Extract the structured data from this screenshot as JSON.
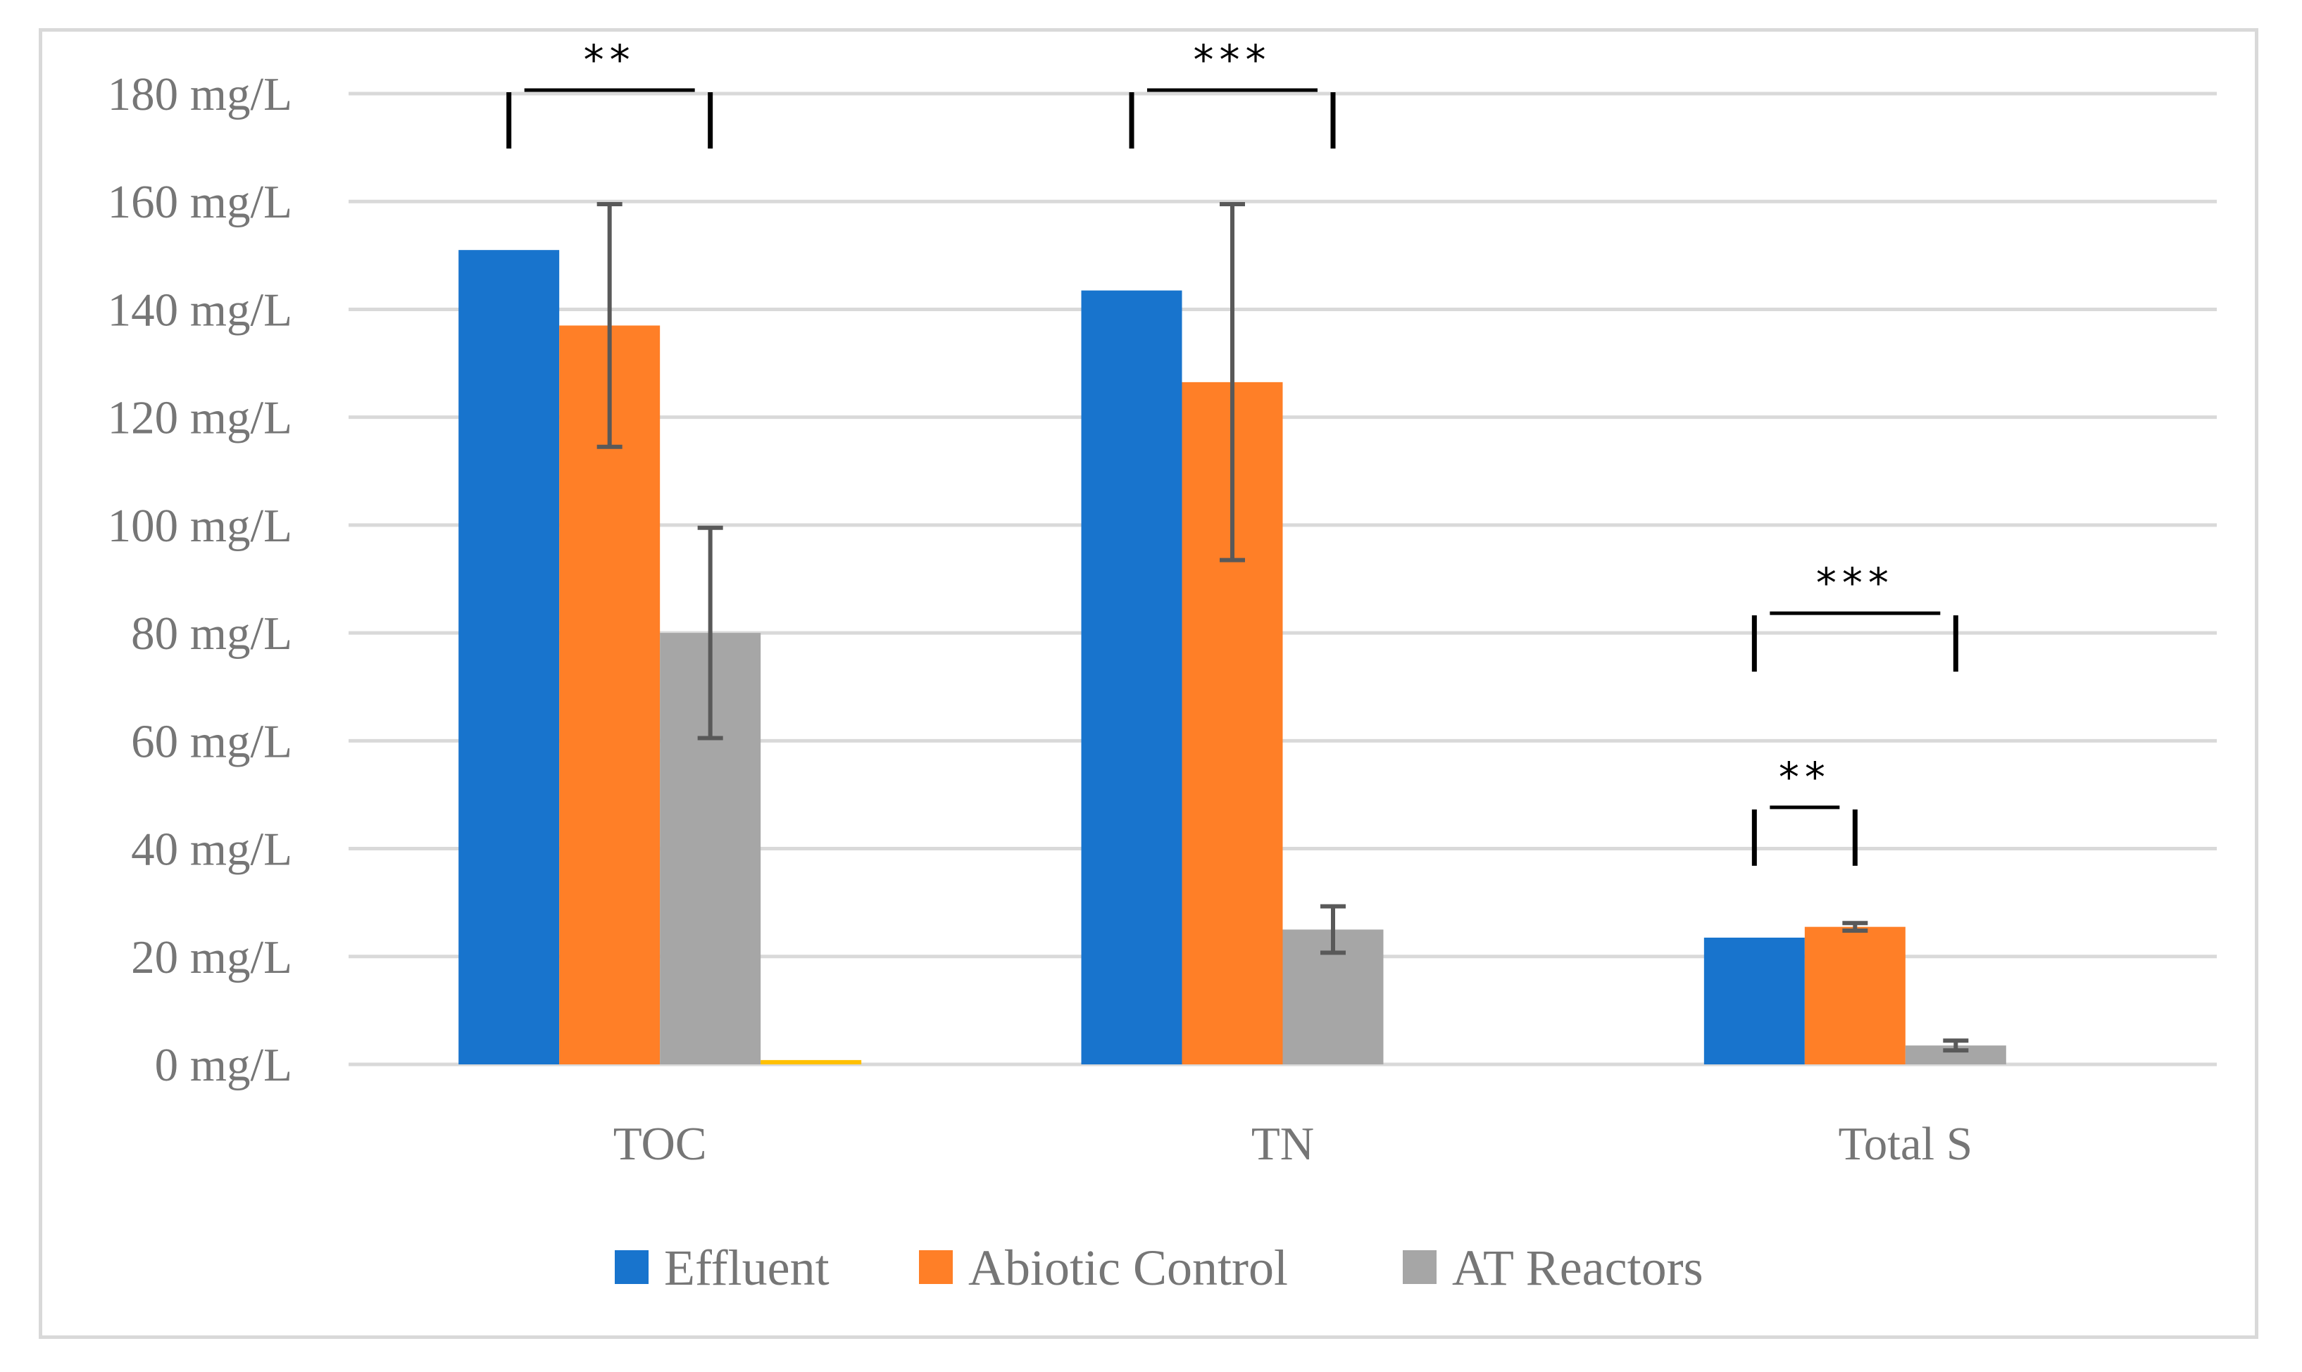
{
  "chart_data": {
    "type": "bar",
    "title": "",
    "xlabel": "",
    "ylabel": "",
    "ylim": [
      0,
      180
    ],
    "grid": true,
    "y_ticks": [
      0,
      20,
      40,
      60,
      80,
      100,
      120,
      140,
      160,
      180
    ],
    "y_tick_labels": [
      "0 mg/L",
      "20 mg/L",
      "40 mg/L",
      "60 mg/L",
      "80 mg/L",
      "100 mg/L",
      "120 mg/L",
      "140 mg/L",
      "160 mg/L",
      "180 mg/L"
    ],
    "categories": [
      "TOC",
      "TN",
      "Total S"
    ],
    "legend_position": "bottom",
    "series": [
      {
        "name": "Effluent",
        "color": "#1874CD",
        "values": [
          151,
          143.5,
          23.5
        ],
        "errors": [
          null,
          null,
          null
        ]
      },
      {
        "name": "Abiotic Control",
        "color": "#FF7F27",
        "values": [
          137,
          126.5,
          25.5
        ],
        "errors": [
          22.5,
          33,
          0.7
        ]
      },
      {
        "name": "AT Reactors",
        "color": "#A6A6A6",
        "values": [
          80,
          25,
          3.5
        ],
        "errors": [
          19.5,
          4.3,
          0.9
        ]
      },
      {
        "name": "",
        "color": "#FFC000",
        "values": [
          0.8,
          0,
          0
        ],
        "errors": [
          null,
          null,
          null
        ]
      }
    ],
    "annotations": [
      {
        "category": 0,
        "from_series": 0,
        "to_series": 2,
        "text": "**",
        "level": 180
      },
      {
        "category": 1,
        "from_series": 0,
        "to_series": 2,
        "text": "***",
        "level": 180
      },
      {
        "category": 2,
        "from_series": 0,
        "to_series": 2,
        "text": "***",
        "level": 83
      },
      {
        "category": 2,
        "from_series": 0,
        "to_series": 1,
        "text": "**",
        "level": 47
      }
    ]
  }
}
